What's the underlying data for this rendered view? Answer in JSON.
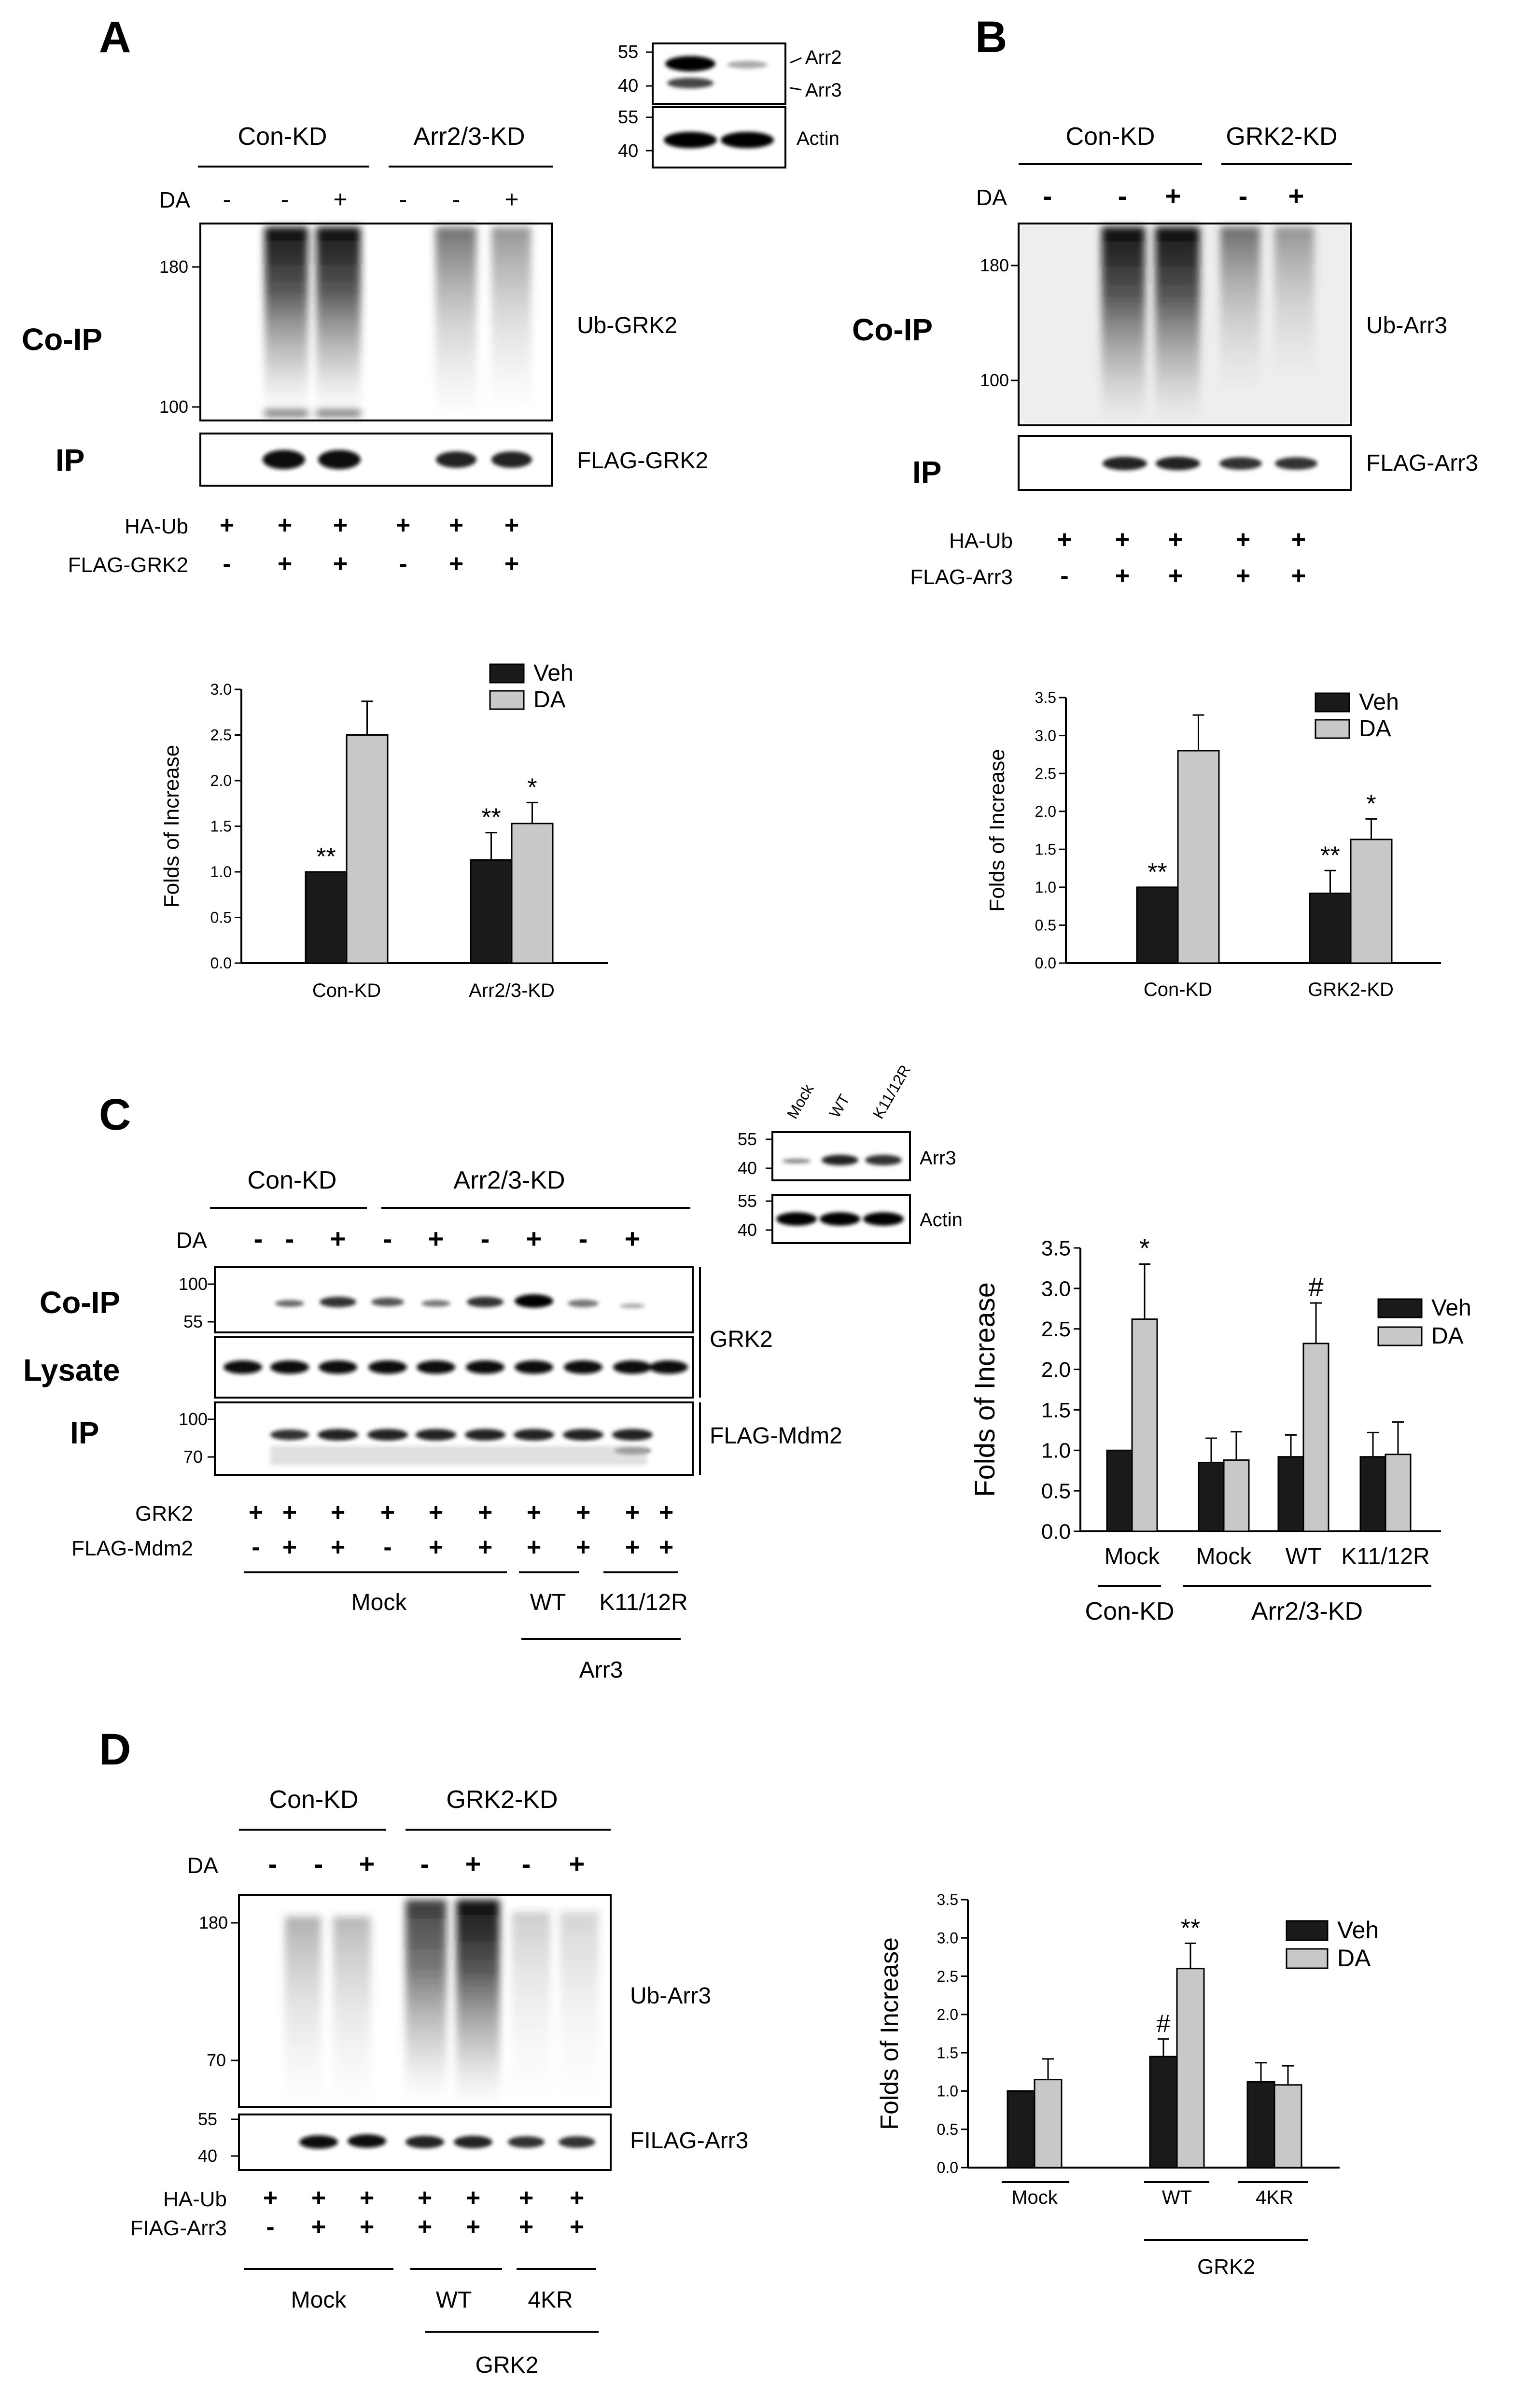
{
  "panelA": {
    "letter": "A",
    "groups": [
      "Con-KD",
      "Arr2/3-KD"
    ],
    "da_label": "DA",
    "da": [
      "-",
      "-",
      "+",
      "-",
      "-",
      "+"
    ],
    "rows": {
      "coip": "Co-IP",
      "ip": "IP"
    },
    "mw_main": [
      "180",
      "100"
    ],
    "band_labels": {
      "ub": "Ub-GRK2",
      "flag": "FLAG-GRK2"
    },
    "inset": {
      "mw": [
        "55",
        "40",
        "55",
        "40"
      ],
      "labels": [
        "Arr2",
        "Arr3",
        "Actin"
      ]
    },
    "bottom": [
      {
        "label": "HA-Ub",
        "signs": [
          "+",
          "+",
          "+",
          "+",
          "+",
          "+"
        ]
      },
      {
        "label": "FLAG-GRK2",
        "signs": [
          "-",
          "+",
          "+",
          "-",
          "+",
          "+"
        ]
      }
    ]
  },
  "panelB": {
    "letter": "B",
    "groups": [
      "Con-KD",
      "GRK2-KD"
    ],
    "da_label": "DA",
    "da": [
      "-",
      "-",
      "+",
      "-",
      "+"
    ],
    "rows": {
      "coip": "Co-IP",
      "ip": "IP"
    },
    "mw_main": [
      "180",
      "100"
    ],
    "band_labels": {
      "ub": "Ub-Arr3",
      "flag": "FLAG-Arr3"
    },
    "bottom": [
      {
        "label": "HA-Ub",
        "signs": [
          "+",
          "+",
          "+",
          "+",
          "+"
        ]
      },
      {
        "label": "FLAG-Arr3",
        "signs": [
          "-",
          "+",
          "+",
          "+",
          "+"
        ]
      }
    ]
  },
  "panelC": {
    "letter": "C",
    "groups": [
      "Con-KD",
      "Arr2/3-KD"
    ],
    "da_label": "DA",
    "da": [
      "-",
      "-",
      "+",
      "-",
      "+",
      "-",
      "+",
      "-",
      "+"
    ],
    "rows": {
      "coip": "Co-IP",
      "lysate": "Lysate",
      "ip": "IP"
    },
    "mw_coip": [
      "100",
      "55"
    ],
    "mw_ip": [
      "100",
      "70"
    ],
    "band_labels": {
      "grk2": "GRK2",
      "flag": "FLAG-Mdm2"
    },
    "inset": {
      "lanes": [
        "Mock",
        "WT",
        "K11/12R"
      ],
      "mw": [
        "55",
        "40",
        "55",
        "40"
      ],
      "labels": [
        "Arr3",
        "Actin"
      ]
    },
    "bottom": [
      {
        "label": "GRK2",
        "signs": [
          "+",
          "+",
          "+",
          "+",
          "+",
          "+",
          "+",
          "+",
          "+",
          "+"
        ]
      },
      {
        "label": "FLAG-Mdm2",
        "signs": [
          "-",
          "+",
          "+",
          "-",
          "+",
          "+",
          "+",
          "+",
          "+",
          "+"
        ]
      }
    ],
    "under": {
      "mock": "Mock",
      "wt": "WT",
      "k": "K11/12R",
      "arr3": "Arr3"
    }
  },
  "panelD": {
    "letter": "D",
    "groups": [
      "Con-KD",
      "GRK2-KD"
    ],
    "da_label": "DA",
    "da": [
      "-",
      "-",
      "+",
      "-",
      "+",
      "-",
      "+"
    ],
    "mw_main": [
      "180",
      "70"
    ],
    "mw_flag": [
      "55",
      "40"
    ],
    "band_labels": {
      "ub": "Ub-Arr3",
      "flag": "FILAG-Arr3"
    },
    "bottom": [
      {
        "label": "HA-Ub",
        "signs": [
          "+",
          "+",
          "+",
          "+",
          "+",
          "+",
          "+"
        ]
      },
      {
        "label": "FIAG-Arr3",
        "signs": [
          "-",
          "+",
          "+",
          "+",
          "+",
          "+",
          "+"
        ]
      }
    ],
    "under": {
      "mock": "Mock",
      "wt": "WT",
      "kr": "4KR",
      "grk2": "GRK2"
    }
  },
  "chart_data": [
    {
      "panel": "A",
      "type": "bar",
      "categories": [
        "Con-KD",
        "Arr2/3-KD"
      ],
      "series": [
        {
          "name": "Veh",
          "values": [
            1.0,
            1.13
          ],
          "errors": [
            0,
            0.3
          ],
          "color": "#1a1a1a"
        },
        {
          "name": "DA",
          "values": [
            2.5,
            1.53
          ],
          "errors": [
            0.37,
            0.23
          ],
          "color": "#c8c8c8"
        }
      ],
      "ylabel": "Folds of Increase",
      "ylim": [
        0,
        3.0
      ],
      "yticks": [
        "0.0",
        "0.5",
        "1.0",
        "1.5",
        "2.0",
        "2.5",
        "3.0"
      ],
      "annotations": {
        "veh": [
          "**",
          "**"
        ],
        "da": [
          "",
          "*"
        ]
      },
      "legend": "top-right"
    },
    {
      "panel": "B",
      "type": "bar",
      "categories": [
        "Con-KD",
        "GRK2-KD"
      ],
      "series": [
        {
          "name": "Veh",
          "values": [
            1.0,
            0.92
          ],
          "errors": [
            0,
            0.3
          ],
          "color": "#1a1a1a"
        },
        {
          "name": "DA",
          "values": [
            2.8,
            1.63
          ],
          "errors": [
            0.47,
            0.27
          ],
          "color": "#c8c8c8"
        }
      ],
      "ylabel": "Folds of Increase",
      "ylim": [
        0,
        3.5
      ],
      "yticks": [
        "0.0",
        "0.5",
        "1.0",
        "1.5",
        "2.0",
        "2.5",
        "3.0",
        "3.5"
      ],
      "annotations": {
        "veh": [
          "**",
          "**"
        ],
        "da": [
          "",
          "*"
        ]
      },
      "legend": "top-right"
    },
    {
      "panel": "C",
      "type": "bar",
      "categories": [
        "Mock",
        "Mock",
        "WT",
        "K11/12R"
      ],
      "groups": [
        {
          "label": "Con-KD",
          "members": [
            0
          ]
        },
        {
          "label": "Arr2/3-KD",
          "members": [
            1,
            2,
            3
          ]
        }
      ],
      "series": [
        {
          "name": "Veh",
          "values": [
            1.0,
            0.85,
            0.92,
            0.92
          ],
          "errors": [
            0,
            0.3,
            0.27,
            0.3
          ],
          "color": "#1a1a1a"
        },
        {
          "name": "DA",
          "values": [
            2.62,
            0.88,
            2.32,
            0.95
          ],
          "errors": [
            0.68,
            0.35,
            0.5,
            0.4
          ],
          "color": "#c8c8c8"
        }
      ],
      "ylabel": "Folds of Increase",
      "ylim": [
        0,
        3.5
      ],
      "yticks": [
        "0.0",
        "0.5",
        "1.0",
        "1.5",
        "2.0",
        "2.5",
        "3.0",
        "3.5"
      ],
      "annotations": {
        "veh": [
          "",
          "",
          "",
          ""
        ],
        "da": [
          "*",
          "",
          "#",
          ""
        ]
      },
      "legend": "top-right"
    },
    {
      "panel": "D",
      "type": "bar",
      "categories": [
        "Mock",
        "WT",
        "4KR"
      ],
      "groups": [
        {
          "label": "GRK2",
          "members": [
            1,
            2
          ]
        }
      ],
      "series": [
        {
          "name": "Veh",
          "values": [
            1.0,
            1.45,
            1.12
          ],
          "errors": [
            0,
            0.23,
            0.25
          ],
          "color": "#1a1a1a"
        },
        {
          "name": "DA",
          "values": [
            1.15,
            2.6,
            1.08
          ],
          "errors": [
            0.27,
            0.33,
            0.25
          ],
          "color": "#c8c8c8"
        }
      ],
      "ylabel": "Folds of Increase",
      "ylim": [
        0,
        3.5
      ],
      "yticks": [
        "0.0",
        "0.5",
        "1.0",
        "1.5",
        "2.0",
        "2.5",
        "3.0",
        "3.5"
      ],
      "annotations": {
        "veh": [
          "",
          "#",
          ""
        ],
        "da": [
          "",
          "**",
          ""
        ]
      },
      "legend": "top-right"
    }
  ]
}
